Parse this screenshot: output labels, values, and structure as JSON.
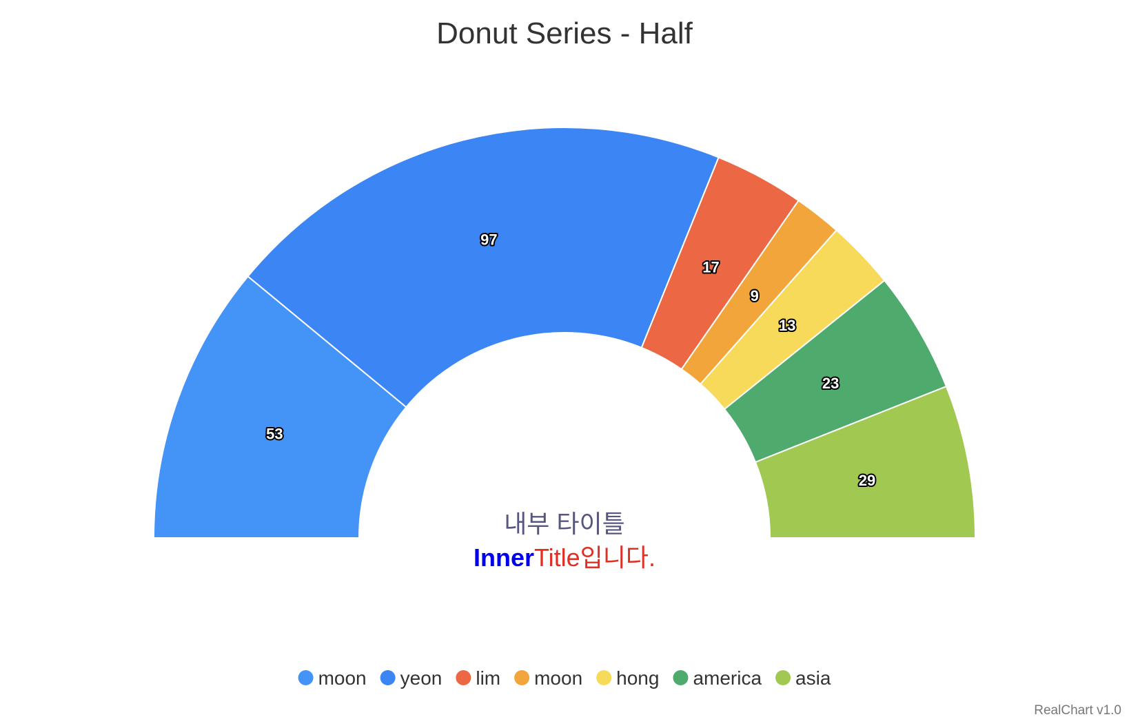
{
  "chart_data": {
    "type": "pie",
    "variant": "half-donut",
    "title": "Donut Series - Half",
    "inner_title": {
      "line1": "내부 타이틀",
      "line2_bold": "Inner",
      "line2_rest": "Title입니다.",
      "line1_color": "#565680",
      "line2_bold_color": "#0000ee",
      "line2_rest_color": "#e03024"
    },
    "start_angle_deg": -90,
    "total_angle_deg": 180,
    "slices": [
      {
        "name": "moon",
        "value": 53,
        "color": "#4394f6"
      },
      {
        "name": "yeon",
        "value": 97,
        "color": "#3b86f4"
      },
      {
        "name": "lim",
        "value": 17,
        "color": "#ec6845"
      },
      {
        "name": "moon",
        "value": 9,
        "color": "#f2a53b"
      },
      {
        "name": "hong",
        "value": 13,
        "color": "#f8da5a"
      },
      {
        "name": "america",
        "value": 23,
        "color": "#4faa6e"
      },
      {
        "name": "asia",
        "value": 29,
        "color": "#a1c952"
      }
    ],
    "legend_position": "bottom",
    "credit": "RealChart v1.0"
  }
}
